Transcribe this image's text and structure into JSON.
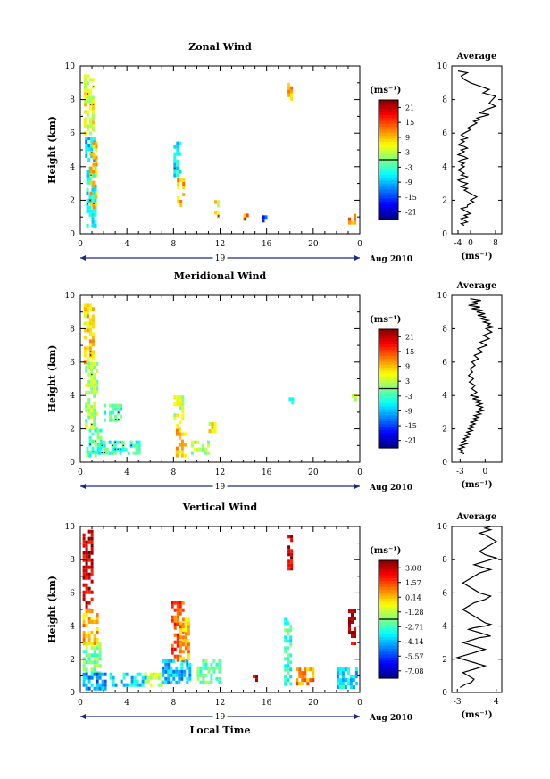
{
  "chart_data": [
    {
      "type": "heatmap",
      "title": "Zonal Wind",
      "ylabel": "Height (km)",
      "xticks": [
        "0",
        "4",
        "8",
        "12",
        "16",
        "20",
        "0"
      ],
      "yticks": [
        "0",
        "2",
        "4",
        "6",
        "8",
        "10"
      ],
      "xlim": [
        0,
        24
      ],
      "ylim": [
        0,
        10
      ],
      "day_label": "19",
      "date_label": "Aug 2010",
      "colorbar": {
        "unit": "(ms⁻¹)",
        "ticks": [
          "21",
          "15",
          "9",
          "3",
          "-3",
          "-9",
          "-15",
          "-21"
        ],
        "range": [
          -24,
          24
        ]
      },
      "patches": [
        {
          "x": 0.3,
          "y": 6.0,
          "w": 0.8,
          "h": 3.5,
          "v": 5
        },
        {
          "x": 0.4,
          "y": 4.5,
          "w": 0.7,
          "h": 1.3,
          "v": -8
        },
        {
          "x": 0.5,
          "y": 0.5,
          "w": 0.9,
          "h": 3.5,
          "v": -6
        },
        {
          "x": 0.8,
          "y": 1.5,
          "w": 0.6,
          "h": 4.0,
          "v": 8
        },
        {
          "x": 8.0,
          "y": 3.5,
          "w": 0.6,
          "h": 2.0,
          "v": -6
        },
        {
          "x": 8.3,
          "y": 1.8,
          "w": 0.6,
          "h": 1.5,
          "v": 9
        },
        {
          "x": 11.5,
          "y": 1.0,
          "w": 0.4,
          "h": 1.0,
          "v": 6
        },
        {
          "x": 14.0,
          "y": 0.9,
          "w": 0.4,
          "h": 0.3,
          "v": 12
        },
        {
          "x": 15.6,
          "y": 0.8,
          "w": 0.4,
          "h": 0.3,
          "v": -14
        },
        {
          "x": 17.8,
          "y": 8.0,
          "w": 0.3,
          "h": 1.0,
          "v": 10
        },
        {
          "x": 23.0,
          "y": 0.6,
          "w": 0.5,
          "h": 0.8,
          "v": 12
        }
      ],
      "profile": {
        "title": "Average",
        "xlabel": "(ms⁻¹)",
        "xticks": [
          "-4",
          "0",
          "8"
        ],
        "yticks": [
          "0",
          "2",
          "4",
          "6",
          "8",
          "10"
        ],
        "xlim": [
          -6,
          10
        ],
        "ylim": [
          0,
          10
        ],
        "x": [
          -2,
          -3,
          -1,
          -2,
          -3,
          -1,
          -2,
          0,
          -1,
          -2,
          -3,
          -1,
          -1,
          0,
          1,
          0,
          1,
          2,
          1,
          0,
          -1,
          -2,
          -1,
          -3,
          -2,
          -1,
          -3,
          -4,
          -2,
          -1,
          -3,
          -2,
          -3,
          -4,
          -3,
          -2,
          -3,
          -2,
          -4,
          -3,
          -1,
          -2,
          -4,
          -3,
          -2,
          -3,
          -1,
          -2,
          -4,
          -3,
          -2,
          -3,
          -1,
          -2,
          -3,
          -2,
          -1,
          0,
          -1,
          0,
          1,
          2,
          1,
          3,
          2,
          4,
          6,
          3,
          5,
          8,
          6,
          7,
          8,
          4,
          6,
          3,
          0,
          -2,
          -3,
          -1,
          -4
        ],
        "y": [
          0.5,
          0.6,
          0.7,
          0.8,
          0.9,
          1.0,
          1.1,
          1.2,
          1.3,
          1.4,
          1.5,
          1.6,
          1.7,
          1.8,
          1.9,
          2.0,
          2.1,
          2.2,
          2.3,
          2.4,
          2.5,
          2.6,
          2.7,
          2.8,
          2.9,
          3.0,
          3.1,
          3.2,
          3.3,
          3.4,
          3.5,
          3.6,
          3.7,
          3.8,
          3.9,
          4.0,
          4.1,
          4.2,
          4.3,
          4.4,
          4.5,
          4.6,
          4.7,
          4.8,
          4.9,
          5.0,
          5.1,
          5.2,
          5.3,
          5.4,
          5.5,
          5.6,
          5.7,
          5.8,
          5.9,
          6.0,
          6.1,
          6.2,
          6.3,
          6.4,
          6.5,
          6.6,
          6.7,
          6.8,
          6.9,
          7.0,
          7.1,
          7.2,
          7.4,
          7.6,
          7.8,
          8.0,
          8.2,
          8.4,
          8.6,
          8.8,
          9.0,
          9.2,
          9.4,
          9.6,
          9.7
        ]
      }
    },
    {
      "type": "heatmap",
      "title": "Meridional Wind",
      "ylabel": "Height (km)",
      "xticks": [
        "0",
        "4",
        "8",
        "12",
        "16",
        "20",
        "0"
      ],
      "yticks": [
        "0",
        "2",
        "4",
        "6",
        "8",
        "10"
      ],
      "xlim": [
        0,
        24
      ],
      "ylim": [
        0,
        10
      ],
      "day_label": "19",
      "date_label": "Aug 2010",
      "colorbar": {
        "unit": "(ms⁻¹)",
        "ticks": [
          "21",
          "15",
          "9",
          "3",
          "-3",
          "-9",
          "-15",
          "-21"
        ],
        "range": [
          -24,
          24
        ]
      },
      "patches": [
        {
          "x": 0.3,
          "y": 6.0,
          "w": 0.9,
          "h": 3.5,
          "v": 8
        },
        {
          "x": 0.4,
          "y": 2.0,
          "w": 1.0,
          "h": 4.0,
          "v": 2
        },
        {
          "x": 0.5,
          "y": 0.5,
          "w": 1.2,
          "h": 1.5,
          "v": -2
        },
        {
          "x": 1.5,
          "y": 0.5,
          "w": 3.5,
          "h": 0.8,
          "v": -4
        },
        {
          "x": 2.0,
          "y": 2.5,
          "w": 1.5,
          "h": 1.0,
          "v": -3
        },
        {
          "x": 8.0,
          "y": 2.0,
          "w": 0.8,
          "h": 2.0,
          "v": 4
        },
        {
          "x": 8.2,
          "y": 0.5,
          "w": 0.7,
          "h": 1.5,
          "v": 9
        },
        {
          "x": 9.5,
          "y": 0.5,
          "w": 1.5,
          "h": 0.8,
          "v": 2
        },
        {
          "x": 11.0,
          "y": 1.8,
          "w": 0.6,
          "h": 0.6,
          "v": 6
        },
        {
          "x": 17.9,
          "y": 3.5,
          "w": 0.3,
          "h": 0.6,
          "v": -4
        },
        {
          "x": 23.3,
          "y": 3.5,
          "w": 0.4,
          "h": 0.8,
          "v": 5
        }
      ],
      "profile": {
        "title": "Average",
        "xlabel": "(ms⁻¹)",
        "xticks": [
          "-3",
          "0"
        ],
        "yticks": [
          "0",
          "2",
          "4",
          "6",
          "8",
          "10"
        ],
        "xlim": [
          -4,
          2
        ],
        "ylim": [
          0,
          10
        ],
        "x": [
          -2.5,
          -3,
          -2.7,
          -3.2,
          -2.5,
          -3,
          -2.2,
          -2.8,
          -2.3,
          -2.6,
          -2,
          -2.4,
          -1.8,
          -2.2,
          -1.5,
          -2,
          -1.3,
          -1.8,
          -1.2,
          -1.7,
          -1,
          -1.5,
          -0.8,
          -1.3,
          -0.5,
          -1,
          -0.2,
          -0.7,
          -0.3,
          -1,
          -0.4,
          -1.2,
          -0.6,
          -1.5,
          -0.8,
          -1.7,
          -1.0,
          -1.6,
          -1.2,
          -1.9,
          -1.4,
          -2.0,
          -1.5,
          -1.8,
          -1.2,
          -1.6,
          -0.8,
          -1.3,
          -0.3,
          -0.9,
          0.2,
          -0.6,
          0.5,
          -0.2,
          0.8,
          0.1,
          1.0,
          0.3,
          0.6,
          -0.2,
          0.4,
          -0.6,
          0.1,
          -0.9,
          0.0,
          -1.0,
          -0.3,
          -1.6,
          -0.6,
          -2.0,
          -0.9,
          -1.6,
          -0.5,
          -1.8
        ],
        "y": [
          0.5,
          0.6,
          0.7,
          0.8,
          0.9,
          1.0,
          1.1,
          1.2,
          1.3,
          1.4,
          1.5,
          1.6,
          1.7,
          1.8,
          1.9,
          2.0,
          2.1,
          2.2,
          2.3,
          2.4,
          2.5,
          2.6,
          2.7,
          2.8,
          2.9,
          3.0,
          3.1,
          3.2,
          3.3,
          3.4,
          3.5,
          3.6,
          3.7,
          3.8,
          3.9,
          4.0,
          4.2,
          4.4,
          4.6,
          4.8,
          5.0,
          5.2,
          5.4,
          5.6,
          5.8,
          6.0,
          6.2,
          6.4,
          6.6,
          6.8,
          7.0,
          7.2,
          7.4,
          7.6,
          7.8,
          8.0,
          8.1,
          8.2,
          8.3,
          8.4,
          8.5,
          8.6,
          8.7,
          8.8,
          8.9,
          9.0,
          9.1,
          9.2,
          9.3,
          9.4,
          9.5,
          9.6,
          9.7,
          9.8
        ]
      }
    },
    {
      "type": "heatmap",
      "title": "Vertical Wind",
      "ylabel": "Height (km)",
      "xlabel": "Local Time",
      "xticks": [
        "0",
        "4",
        "8",
        "12",
        "16",
        "20",
        "0"
      ],
      "yticks": [
        "0",
        "2",
        "4",
        "6",
        "8",
        "10"
      ],
      "xlim": [
        0,
        24
      ],
      "ylim": [
        0,
        10
      ],
      "day_label": "19",
      "date_label": "Aug 2010",
      "colorbar": {
        "unit": "(ms⁻¹)",
        "ticks": [
          "3.08",
          "1.57",
          "0.14",
          "-1.28",
          "-2.71",
          "-4.14",
          "-5.57",
          "-7.08"
        ],
        "range": [
          -8.5,
          4.5
        ]
      },
      "patches": [
        {
          "x": 0.2,
          "y": 5.0,
          "w": 0.9,
          "h": 4.8,
          "v": 3.5
        },
        {
          "x": 0.2,
          "y": 3.0,
          "w": 1.2,
          "h": 2.0,
          "v": 0.5
        },
        {
          "x": 0.2,
          "y": 1.0,
          "w": 1.5,
          "h": 2.0,
          "v": -2
        },
        {
          "x": 0.2,
          "y": 0.3,
          "w": 2.0,
          "h": 0.9,
          "v": -5
        },
        {
          "x": 2.5,
          "y": 0.5,
          "w": 3.0,
          "h": 0.7,
          "v": -4
        },
        {
          "x": 5.5,
          "y": 0.5,
          "w": 1.5,
          "h": 0.7,
          "v": -1
        },
        {
          "x": 7.0,
          "y": 0.5,
          "w": 2.5,
          "h": 1.5,
          "v": -4.5
        },
        {
          "x": 7.8,
          "y": 2.0,
          "w": 1.0,
          "h": 3.5,
          "v": 2
        },
        {
          "x": 8.5,
          "y": 2.0,
          "w": 0.8,
          "h": 2.5,
          "v": 0.5
        },
        {
          "x": 10.0,
          "y": 0.5,
          "w": 2.0,
          "h": 1.5,
          "v": -2.5
        },
        {
          "x": 14.8,
          "y": 0.5,
          "w": 0.3,
          "h": 1.0,
          "v": 3.5
        },
        {
          "x": 17.5,
          "y": 0.5,
          "w": 0.6,
          "h": 4.0,
          "v": -3
        },
        {
          "x": 17.8,
          "y": 7.5,
          "w": 0.4,
          "h": 2.0,
          "v": 3.5
        },
        {
          "x": 18.5,
          "y": 0.5,
          "w": 1.5,
          "h": 1.0,
          "v": 1.0
        },
        {
          "x": 22.0,
          "y": 0.3,
          "w": 1.8,
          "h": 1.2,
          "v": -4
        },
        {
          "x": 23.0,
          "y": 3.0,
          "w": 0.5,
          "h": 2.0,
          "v": 3.5
        }
      ],
      "profile": {
        "title": "Average",
        "xlabel": "(ms⁻¹)",
        "xticks": [
          "-3",
          "4"
        ],
        "yticks": [
          "0",
          "2",
          "4",
          "6",
          "8",
          "10"
        ],
        "xlim": [
          -4,
          5
        ],
        "ylim": [
          0,
          10
        ],
        "x": [
          -2.5,
          -2,
          -1.5,
          -0.5,
          0,
          -1,
          -2,
          -1,
          0,
          1,
          2,
          1,
          0,
          -1,
          -2,
          -3,
          -2,
          -1,
          0,
          1,
          2,
          1,
          0,
          -1,
          -2,
          -1,
          0,
          1,
          3,
          2,
          1,
          0,
          -1,
          0,
          2,
          3,
          2,
          1,
          0,
          -1,
          -2,
          -1,
          0,
          2,
          3,
          1,
          0,
          -1,
          -2,
          -1,
          0,
          1,
          2,
          3,
          2,
          1,
          0,
          1,
          2,
          3,
          4,
          3,
          2,
          1,
          2,
          3,
          4,
          3,
          2,
          1,
          2,
          3,
          2,
          3
        ],
        "y": [
          0.3,
          0.4,
          0.5,
          0.6,
          0.8,
          1.0,
          1.2,
          1.3,
          1.4,
          1.5,
          1.6,
          1.7,
          1.8,
          1.9,
          2.0,
          2.1,
          2.2,
          2.3,
          2.4,
          2.5,
          2.6,
          2.7,
          2.8,
          2.9,
          3.0,
          3.1,
          3.2,
          3.3,
          3.4,
          3.5,
          3.6,
          3.7,
          3.8,
          3.9,
          4.0,
          4.1,
          4.2,
          4.4,
          4.6,
          4.8,
          5.0,
          5.2,
          5.4,
          5.6,
          5.8,
          6.0,
          6.2,
          6.4,
          6.6,
          6.8,
          7.0,
          7.2,
          7.3,
          7.4,
          7.5,
          7.6,
          7.7,
          7.8,
          7.9,
          8.0,
          8.1,
          8.2,
          8.3,
          8.5,
          8.7,
          8.9,
          9.1,
          9.3,
          9.5,
          9.6,
          9.7,
          9.8,
          9.9,
          10.0
        ]
      }
    }
  ]
}
